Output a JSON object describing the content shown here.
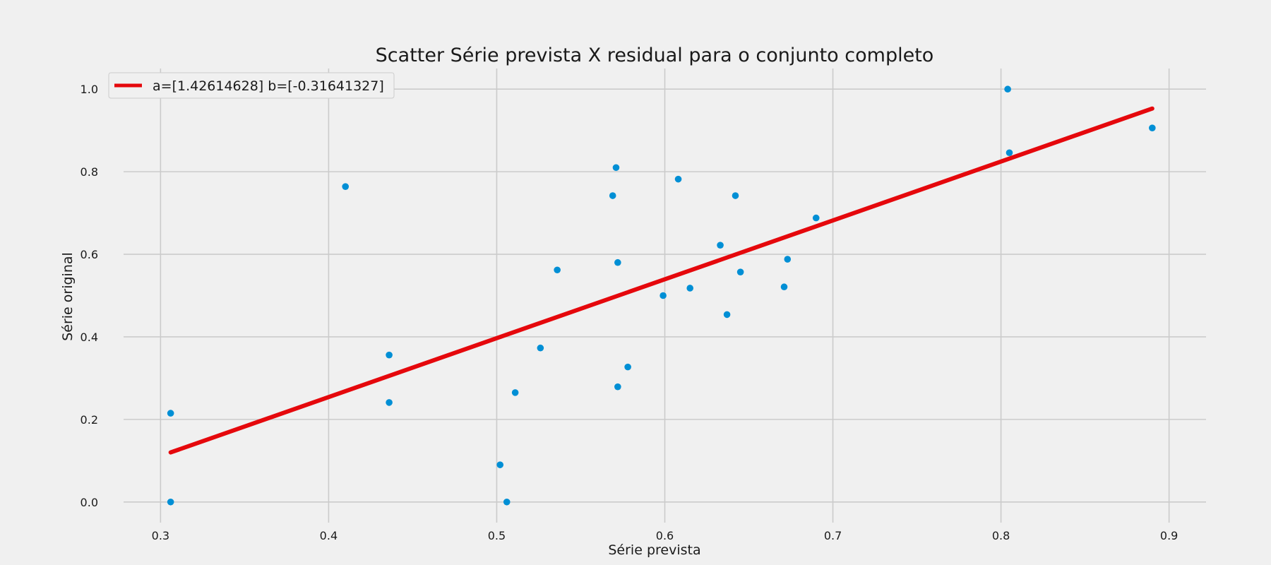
{
  "chart_data": {
    "type": "scatter",
    "title": "Scatter Série prevista X residual para o conjunto completo",
    "xlabel": "Série prevista",
    "ylabel": "Série original",
    "xlim": [
      0.278,
      0.922
    ],
    "ylim": [
      -0.05,
      1.05
    ],
    "xticks": [
      0.3,
      0.4,
      0.5,
      0.6,
      0.7,
      0.8,
      0.9
    ],
    "yticks": [
      0.0,
      0.2,
      0.4,
      0.6,
      0.8,
      1.0
    ],
    "xtick_labels": [
      "0.3",
      "0.4",
      "0.5",
      "0.6",
      "0.7",
      "0.8",
      "0.9"
    ],
    "ytick_labels": [
      "0.0",
      "0.2",
      "0.4",
      "0.6",
      "0.8",
      "1.0"
    ],
    "grid": true,
    "legend_position": "top-left",
    "series": [
      {
        "type": "scatter",
        "color": "#008fd5",
        "points": [
          [
            0.306,
            0.215
          ],
          [
            0.306,
            0.0
          ],
          [
            0.41,
            0.764
          ],
          [
            0.436,
            0.356
          ],
          [
            0.436,
            0.241
          ],
          [
            0.502,
            0.09
          ],
          [
            0.506,
            0.0
          ],
          [
            0.511,
            0.265
          ],
          [
            0.526,
            0.373
          ],
          [
            0.536,
            0.562
          ],
          [
            0.569,
            0.742
          ],
          [
            0.571,
            0.81
          ],
          [
            0.572,
            0.58
          ],
          [
            0.572,
            0.279
          ],
          [
            0.578,
            0.327
          ],
          [
            0.599,
            0.5
          ],
          [
            0.608,
            0.782
          ],
          [
            0.615,
            0.518
          ],
          [
            0.633,
            0.622
          ],
          [
            0.637,
            0.454
          ],
          [
            0.642,
            0.742
          ],
          [
            0.645,
            0.557
          ],
          [
            0.671,
            0.521
          ],
          [
            0.673,
            0.588
          ],
          [
            0.69,
            0.688
          ],
          [
            0.804,
            1.0
          ],
          [
            0.805,
            0.846
          ],
          [
            0.89,
            0.906
          ]
        ]
      },
      {
        "type": "line",
        "name": "a=[1.42614628] b=[-0.31641327]",
        "color": "#e5080c",
        "x": [
          0.306,
          0.89
        ],
        "y": [
          0.1201,
          0.953
        ]
      }
    ]
  }
}
